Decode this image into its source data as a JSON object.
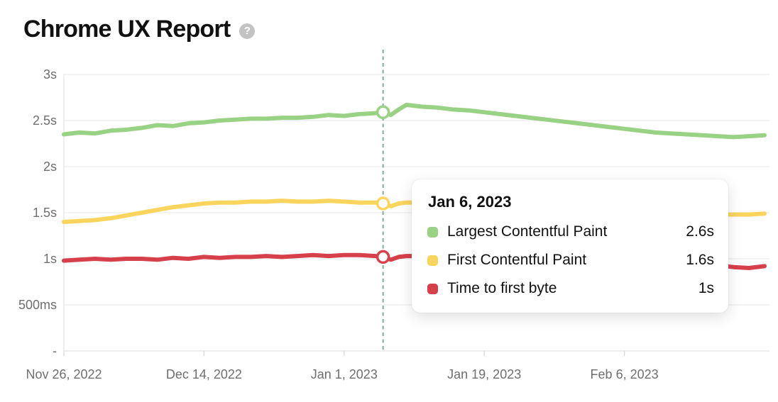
{
  "header": {
    "title": "Chrome UX Report",
    "help_glyph": "?"
  },
  "colors": {
    "lcp_green": "#99d284",
    "fcp_yellow": "#fad55e",
    "ttfb_red": "#d6404b",
    "crosshair_teal": "#84a89d",
    "grid_gray": "#ececec",
    "axis_line_gray": "#e3e3e3",
    "tick_gray": "#d6d6d6",
    "axis_text_gray": "#6e6e6e",
    "title_black": "#111111",
    "help_icon_gray": "#c3c3c3"
  },
  "chart_data": {
    "type": "line",
    "title": "Chrome UX Report",
    "xlabel": "",
    "ylabel": "",
    "ylim": [
      0,
      3
    ],
    "y_unit": "seconds",
    "grid": true,
    "legend_position": "tooltip",
    "x_range_days": [
      0,
      90
    ],
    "x_ticks": [
      {
        "day": 0,
        "label": "Nov 26, 2022"
      },
      {
        "day": 18,
        "label": "Dec 14, 2022"
      },
      {
        "day": 36,
        "label": "Jan 1, 2023"
      },
      {
        "day": 54,
        "label": "Jan 19, 2023"
      },
      {
        "day": 72,
        "label": "Feb 6, 2023"
      }
    ],
    "y_ticks": [
      {
        "value": 3,
        "label": "3s"
      },
      {
        "value": 2.5,
        "label": "2.5s"
      },
      {
        "value": 2,
        "label": "2s"
      },
      {
        "value": 1.5,
        "label": "1.5s"
      },
      {
        "value": 1,
        "label": "1s"
      },
      {
        "value": 0.5,
        "label": "500ms"
      },
      {
        "value": 0,
        "label": "-"
      }
    ],
    "x_days": [
      0,
      2,
      4,
      6,
      8,
      10,
      12,
      14,
      16,
      18,
      20,
      22,
      24,
      26,
      28,
      30,
      32,
      34,
      36,
      38,
      40,
      41,
      42,
      43,
      44,
      46,
      48,
      50,
      52,
      54,
      56,
      58,
      60,
      62,
      64,
      66,
      68,
      70,
      72,
      74,
      76,
      78,
      80,
      82,
      84,
      86,
      88,
      90
    ],
    "series": [
      {
        "name": "Largest Contentful Paint",
        "id": "largest-contentful-paint",
        "color": "#99d284",
        "values": [
          2.35,
          2.37,
          2.36,
          2.39,
          2.4,
          2.42,
          2.45,
          2.44,
          2.47,
          2.48,
          2.5,
          2.51,
          2.52,
          2.52,
          2.53,
          2.53,
          2.54,
          2.56,
          2.55,
          2.57,
          2.58,
          2.59,
          2.56,
          2.62,
          2.67,
          2.65,
          2.64,
          2.62,
          2.61,
          2.59,
          2.57,
          2.55,
          2.53,
          2.51,
          2.49,
          2.47,
          2.45,
          2.43,
          2.41,
          2.39,
          2.37,
          2.36,
          2.35,
          2.34,
          2.33,
          2.32,
          2.33,
          2.34
        ]
      },
      {
        "name": "First Contentful Paint",
        "id": "first-contentful-paint",
        "color": "#fad55e",
        "values": [
          1.4,
          1.41,
          1.42,
          1.44,
          1.47,
          1.5,
          1.53,
          1.56,
          1.58,
          1.6,
          1.61,
          1.61,
          1.62,
          1.62,
          1.63,
          1.62,
          1.62,
          1.63,
          1.62,
          1.61,
          1.61,
          1.6,
          1.57,
          1.6,
          1.61,
          1.61,
          1.6,
          1.6,
          1.59,
          1.58,
          1.57,
          1.57,
          1.56,
          1.55,
          1.54,
          1.54,
          1.53,
          1.52,
          1.52,
          1.51,
          1.5,
          1.5,
          1.49,
          1.49,
          1.48,
          1.48,
          1.48,
          1.49
        ]
      },
      {
        "name": "Time to first byte",
        "id": "time-to-first-byte",
        "color": "#d6404b",
        "values": [
          0.98,
          0.99,
          1.0,
          0.99,
          1.0,
          1.0,
          0.99,
          1.01,
          1.0,
          1.02,
          1.01,
          1.02,
          1.02,
          1.03,
          1.02,
          1.03,
          1.04,
          1.03,
          1.04,
          1.04,
          1.03,
          1.02,
          0.99,
          1.02,
          1.03,
          1.03,
          1.02,
          1.02,
          1.02,
          1.01,
          1.01,
          1.0,
          1.0,
          1.0,
          0.99,
          0.99,
          0.98,
          0.98,
          0.97,
          0.97,
          0.96,
          0.95,
          0.95,
          0.94,
          0.93,
          0.91,
          0.9,
          0.92
        ]
      }
    ],
    "hover": {
      "day": 41,
      "date_label": "Jan 6, 2023"
    }
  },
  "tooltip": {
    "title": "Jan 6, 2023",
    "rows": [
      {
        "label": "Largest Contentful Paint",
        "value": "2.6s",
        "color": "#99d284"
      },
      {
        "label": "First Contentful Paint",
        "value": "1.6s",
        "color": "#fad55e"
      },
      {
        "label": "Time to first byte",
        "value": "1s",
        "color": "#d6404b"
      }
    ]
  }
}
